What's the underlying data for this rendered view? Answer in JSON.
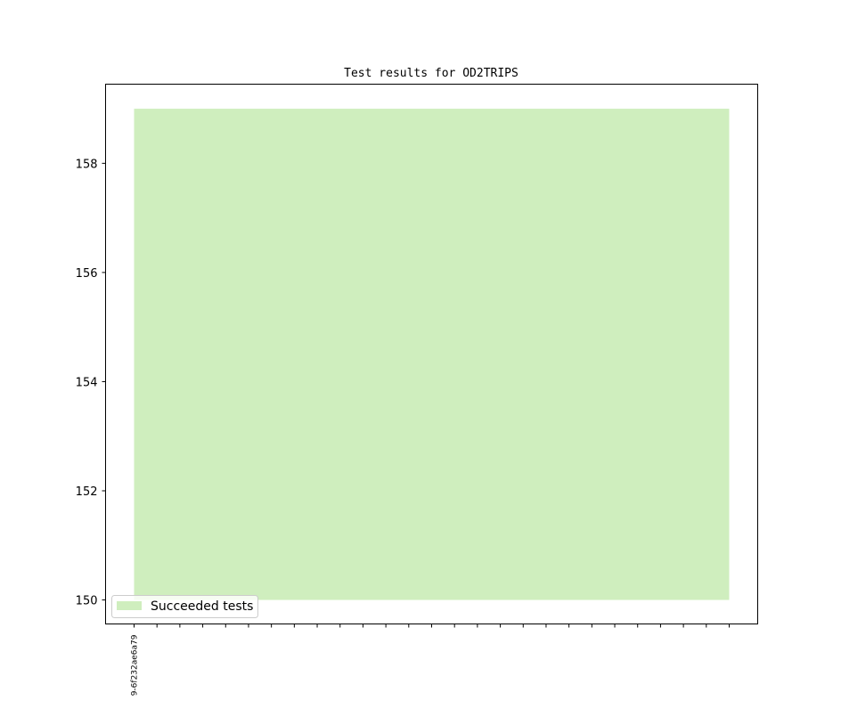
{
  "chart_data": {
    "type": "area",
    "title": "Test results for OD2TRIPS",
    "xlabel": "",
    "ylabel": "",
    "x": [
      0,
      1,
      2,
      3,
      4,
      5,
      6,
      7,
      8,
      9,
      10,
      11,
      12,
      13,
      14,
      15,
      16,
      17,
      18,
      19,
      20,
      21,
      22,
      23,
      24,
      25,
      26
    ],
    "xticklabels": [
      "9-6f232ae6a79"
    ],
    "ylim": [
      149.56,
      159.45
    ],
    "yticks": [
      150,
      152,
      154,
      156,
      158
    ],
    "grid": false,
    "legend_position": "lower-left",
    "series": [
      {
        "name": "Succeeded tests",
        "lower": 150,
        "upper": 159,
        "color": "#cfeebe"
      }
    ]
  }
}
